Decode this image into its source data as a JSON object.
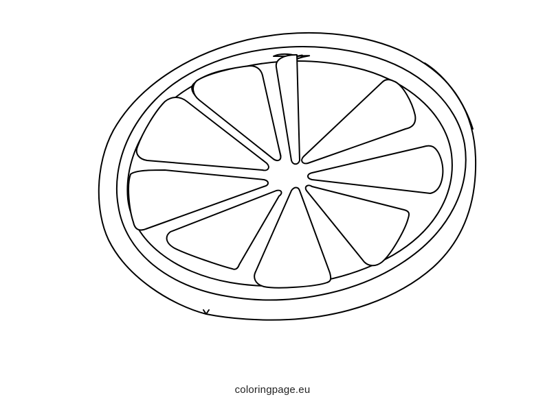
{
  "image": {
    "subject": "orange-half-coloring-page",
    "colors": {
      "line": "#000000",
      "background": "#ffffff"
    },
    "segment_count": 9
  },
  "watermark": {
    "text": "coloringpage.eu"
  }
}
